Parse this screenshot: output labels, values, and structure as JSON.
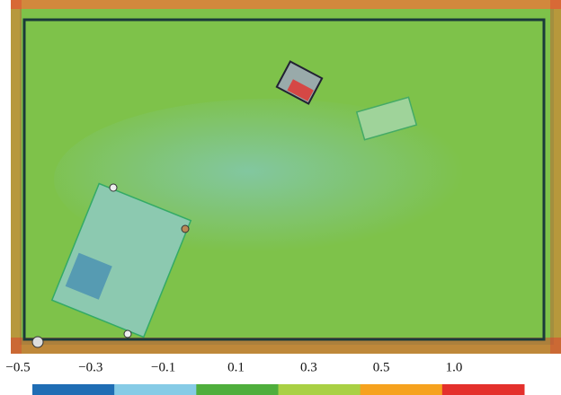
{
  "colorbar": {
    "ticks": [
      {
        "value": -0.5,
        "label": "−0.5"
      },
      {
        "value": -0.3,
        "label": "−0.3"
      },
      {
        "value": -0.1,
        "label": "−0.1"
      },
      0.1,
      0.3,
      0.5,
      {
        "value": 1.0,
        "label": "1.0"
      }
    ],
    "colors": [
      "#1f6db4",
      "#86cbe6",
      "#4fae3c",
      "#a9d044",
      "#f6a21e",
      "#e4302c"
    ]
  }
}
